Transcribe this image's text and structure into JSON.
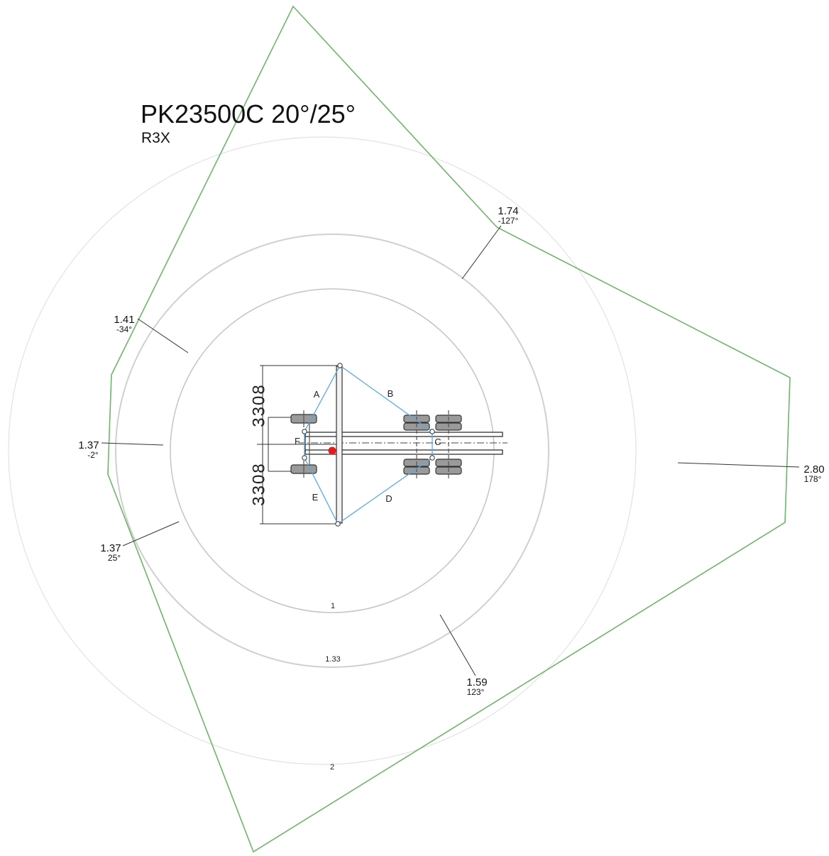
{
  "title": "PK23500C 20°/25°",
  "subtitle": "R3X",
  "colors": {
    "envelope": "#6fb56a",
    "support_lines": "#5aa7e6",
    "rings": "#d0d0d0",
    "inner_ring": "#b5b5b5",
    "pivot": "#e31b1b"
  },
  "ring_labels": [
    "1",
    "1.33",
    "2"
  ],
  "callouts": [
    {
      "value": "1.74",
      "angle": "-127°"
    },
    {
      "value": "1.41",
      "angle": "-34°"
    },
    {
      "value": "1.37",
      "angle": "-2°"
    },
    {
      "value": "1.37",
      "angle": "25°"
    },
    {
      "value": "1.59",
      "angle": "123°"
    },
    {
      "value": "2.80",
      "angle": "178°"
    }
  ],
  "dimensions": {
    "upper": "3308",
    "lower": "3308"
  },
  "support_points": [
    "A",
    "B",
    "C",
    "D",
    "E",
    "F"
  ]
}
